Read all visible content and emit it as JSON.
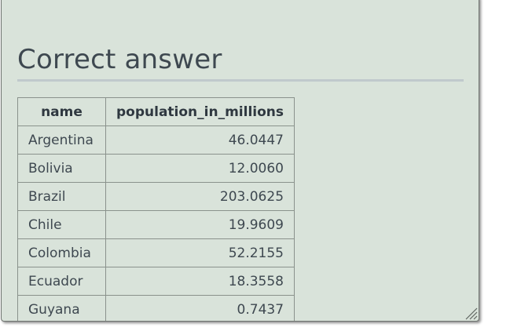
{
  "section": {
    "title": "Correct answer"
  },
  "table": {
    "columns": [
      "name",
      "population_in_millions"
    ],
    "rows": [
      {
        "name": "Argentina",
        "population_in_millions": "46.0447"
      },
      {
        "name": "Bolivia",
        "population_in_millions": "12.0060"
      },
      {
        "name": "Brazil",
        "population_in_millions": "203.0625"
      },
      {
        "name": "Chile",
        "population_in_millions": "19.9609"
      },
      {
        "name": "Colombia",
        "population_in_millions": "52.2155"
      },
      {
        "name": "Ecuador",
        "population_in_millions": "18.3558"
      },
      {
        "name": "Guyana",
        "population_in_millions": "0.7437"
      }
    ]
  },
  "icons": {
    "resize": "resize-grip-icon"
  },
  "colors": {
    "panel_background": "#d9e3da",
    "text": "#3e4850",
    "rule": "#c0c9cc"
  }
}
